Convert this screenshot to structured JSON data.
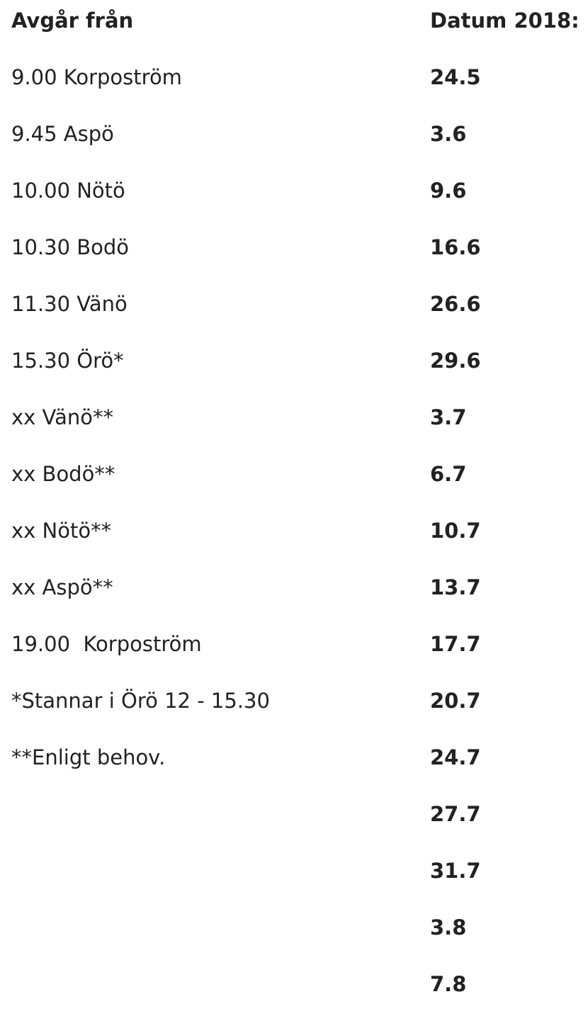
{
  "table": {
    "headers": {
      "departure": "Avgår från",
      "dates": "Datum 2018:"
    },
    "departures": [
      "9.00 Korpoström",
      "9.45 Aspö",
      "10.00 Nötö",
      "10.30 Bodö",
      "11.30 Vänö",
      "15.30 Örö*",
      "xx Vänö**",
      "xx Bodö**",
      "xx Nötö**",
      "xx Aspö**",
      "19.00  Korpoström",
      "*Stannar i Örö 12 - 15.30",
      "**Enligt behov."
    ],
    "dates": [
      "24.5",
      "3.6",
      "9.6",
      "16.6",
      "26.6",
      "29.6",
      "3.7",
      "6.7",
      "10.7",
      "13.7",
      "17.7",
      "20.7",
      "24.7",
      "27.7",
      "31.7",
      "3.8",
      "7.8"
    ]
  }
}
